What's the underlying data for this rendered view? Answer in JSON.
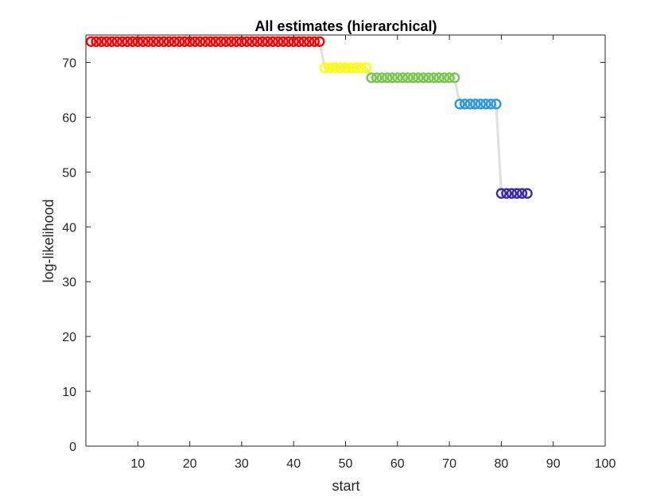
{
  "chart_data": {
    "type": "scatter",
    "title": "All estimates (hierarchical)",
    "xlabel": "start",
    "ylabel": "log-likelihood",
    "xlim": [
      0,
      100
    ],
    "ylim": [
      0,
      75
    ],
    "xticks": [
      "10",
      "20",
      "30",
      "40",
      "50",
      "60",
      "70",
      "80",
      "90",
      "100"
    ],
    "yticks": [
      "0",
      "10",
      "20",
      "30",
      "40",
      "50",
      "60",
      "70"
    ],
    "grid": false,
    "line_color": "#e0e0e0",
    "clusters": [
      {
        "color": "#ff0000",
        "x_start": 1,
        "x_end": 45,
        "y": 73.8
      },
      {
        "color": "#ffff00",
        "x_start": 46,
        "x_end": 54,
        "y": 69.0
      },
      {
        "color": "#77c74d",
        "x_start": 55,
        "x_end": 71,
        "y": 67.2
      },
      {
        "color": "#2b97e6",
        "x_start": 72,
        "x_end": 79,
        "y": 62.4
      },
      {
        "color": "#3b2ba8",
        "x_start": 80,
        "x_end": 85,
        "y": 46.1
      }
    ]
  }
}
